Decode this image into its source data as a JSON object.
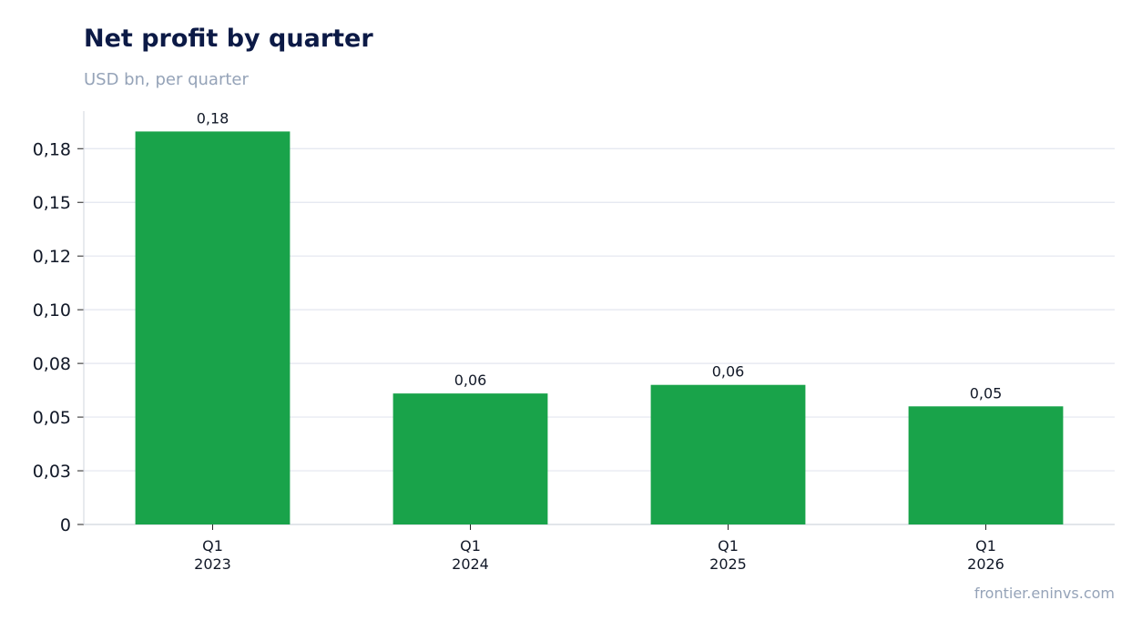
{
  "chart_data": {
    "type": "bar",
    "title": "Net profit by quarter",
    "subtitle": "USD bn, per quarter",
    "source": "frontier.eninvs.com",
    "categories": [
      [
        "Q1",
        "2023"
      ],
      [
        "Q1",
        "2024"
      ],
      [
        "Q1",
        "2025"
      ],
      [
        "Q1",
        "2026"
      ]
    ],
    "values": [
      0.183,
      0.061,
      0.065,
      0.055
    ],
    "data_labels": [
      "0,18",
      "0,06",
      "0,06",
      "0,05"
    ],
    "yticks": [
      {
        "value": 0,
        "label": "0"
      },
      {
        "value": 0.025,
        "label": "0,03"
      },
      {
        "value": 0.05,
        "label": "0,05"
      },
      {
        "value": 0.075,
        "label": "0,08"
      },
      {
        "value": 0.1,
        "label": "0,10"
      },
      {
        "value": 0.125,
        "label": "0,12"
      },
      {
        "value": 0.15,
        "label": "0,15"
      },
      {
        "value": 0.175,
        "label": "0,18"
      }
    ],
    "ylim": [
      0,
      0.1925
    ],
    "grid": true,
    "colors": {
      "bar": "#19a34a",
      "grid": "#e3e6ef",
      "axis": "#d1d5de",
      "text": "#111827"
    }
  }
}
